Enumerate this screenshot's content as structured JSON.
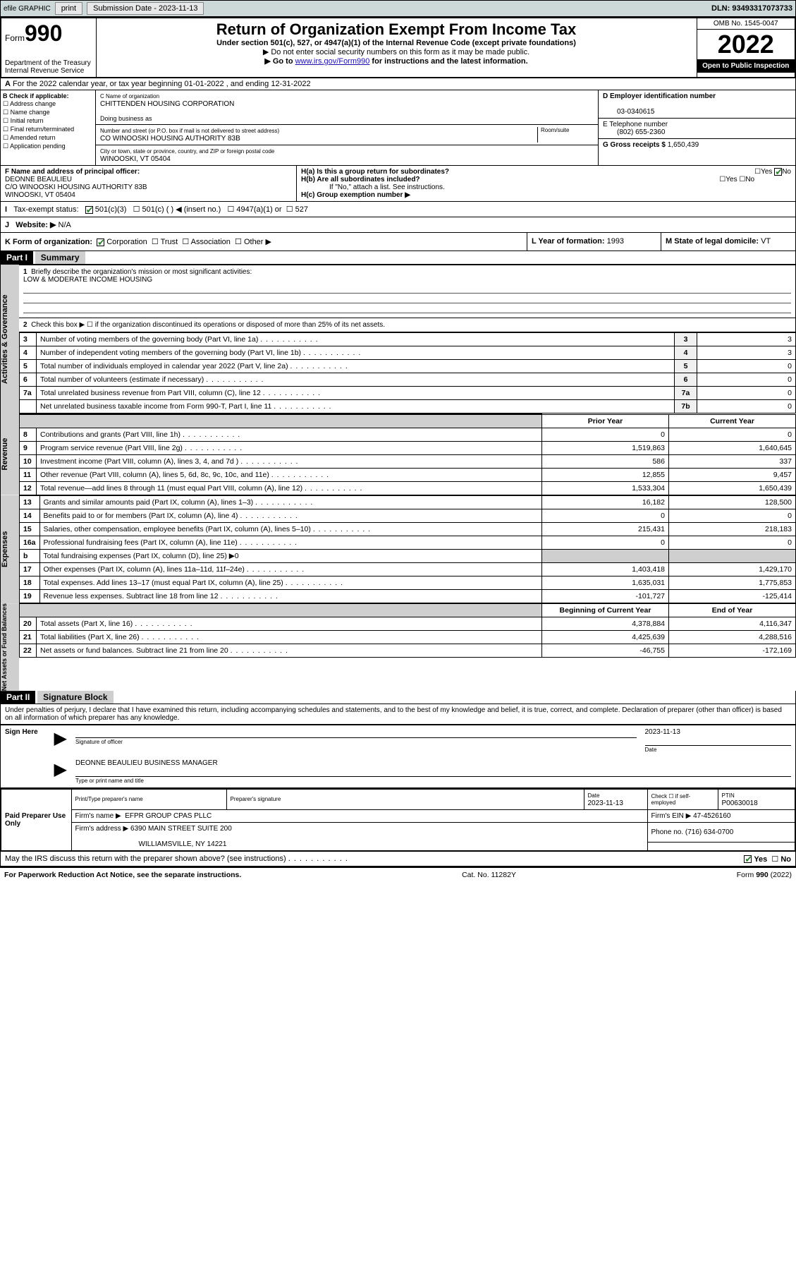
{
  "topbar": {
    "efile": "efile GRAPHIC",
    "print": "print",
    "subdate_lbl": "Submission Date - 2023-11-13",
    "dln": "DLN: 93493317073733"
  },
  "hdr": {
    "form": "Form",
    "num": "990",
    "dept": "Department of the Treasury",
    "irs": "Internal Revenue Service",
    "title": "Return of Organization Exempt From Income Tax",
    "sub1": "Under section 501(c), 527, or 4947(a)(1) of the Internal Revenue Code (except private foundations)",
    "sub2": "▶ Do not enter social security numbers on this form as it may be made public.",
    "sub3a": "▶ Go to ",
    "sub3link": "www.irs.gov/Form990",
    "sub3b": " for instructions and the latest information.",
    "omb": "OMB No. 1545-0047",
    "year": "2022",
    "open": "Open to Public Inspection"
  },
  "rowA": "For the 2022 calendar year, or tax year beginning 01-01-2022   , and ending 12-31-2022",
  "B": {
    "hdr": "B Check if applicable:",
    "addr": "Address change",
    "name": "Name change",
    "init": "Initial return",
    "fin": "Final return/terminated",
    "amend": "Amended return",
    "app": "Application pending"
  },
  "C": {
    "lbl": "C Name of organization",
    "org": "CHITTENDEN HOUSING CORPORATION",
    "dba": "Doing business as",
    "street_lbl": "Number and street (or P.O. box if mail is not delivered to street address)",
    "street": "CO WINOOSKI HOUSING AUTHORITY 83B",
    "room": "Room/suite",
    "city_lbl": "City or town, state or province, country, and ZIP or foreign postal code",
    "city": "WINOOSKI, VT  05404"
  },
  "D": {
    "lbl": "D Employer identification number",
    "val": "03-0340615"
  },
  "E": {
    "lbl": "E Telephone number",
    "val": "(802) 655-2360"
  },
  "G": {
    "lbl": "G Gross receipts $",
    "val": "1,650,439"
  },
  "F": {
    "lbl": "F  Name and address of principal officer:",
    "name": "DEONNE BEAULIEU",
    "l2": "C/O WINOOSKI HOUSING AUTHORITY 83B",
    "l3": "WINOOSKI, VT  05404"
  },
  "H": {
    "a": "H(a)  Is this a group return for subordinates?",
    "b": "H(b)  Are all subordinates included?",
    "bno": "If \"No,\" attach a list. See instructions.",
    "c": "H(c)  Group exemption number ▶",
    "yes": "Yes",
    "no": "No"
  },
  "I": {
    "lbl": "Tax-exempt status:",
    "c3": "501(c)(3)",
    "c": "501(c) (  ) ◀ (insert no.)",
    "a1": "4947(a)(1) or",
    "s527": "527"
  },
  "J": {
    "lbl": "Website: ▶",
    "val": "N/A"
  },
  "K": {
    "lbl": "K Form of organization:",
    "corp": "Corporation",
    "trust": "Trust",
    "assoc": "Association",
    "other": "Other ▶"
  },
  "L": {
    "lbl": "L Year of formation:",
    "val": "1993"
  },
  "M": {
    "lbl": "M State of legal domicile:",
    "val": "VT"
  },
  "part1": {
    "hdr": "Part I",
    "title": "Summary"
  },
  "sidelabels": {
    "act": "Activities & Governance",
    "rev": "Revenue",
    "exp": "Expenses",
    "net": "Net Assets or Fund Balances"
  },
  "s1": {
    "q1": "Briefly describe the organization's mission or most significant activities:",
    "mission": "LOW & MODERATE INCOME HOUSING",
    "q2": "Check this box ▶ ☐  if the organization discontinued its operations or disposed of more than 25% of its net assets.",
    "r": [
      {
        "n": "3",
        "t": "Number of voting members of the governing body (Part VI, line 1a)",
        "k": "3",
        "v": "3"
      },
      {
        "n": "4",
        "t": "Number of independent voting members of the governing body (Part VI, line 1b)",
        "k": "4",
        "v": "3"
      },
      {
        "n": "5",
        "t": "Total number of individuals employed in calendar year 2022 (Part V, line 2a)",
        "k": "5",
        "v": "0"
      },
      {
        "n": "6",
        "t": "Total number of volunteers (estimate if necessary)",
        "k": "6",
        "v": "0"
      },
      {
        "n": "7a",
        "t": "Total unrelated business revenue from Part VIII, column (C), line 12",
        "k": "7a",
        "v": "0"
      },
      {
        "n": "",
        "t": "Net unrelated business taxable income from Form 990-T, Part I, line 11",
        "k": "7b",
        "v": "0"
      }
    ],
    "py": "Prior Year",
    "cy": "Current Year",
    "rev": [
      {
        "n": "8",
        "t": "Contributions and grants (Part VIII, line 1h)",
        "p": "0",
        "c": "0"
      },
      {
        "n": "9",
        "t": "Program service revenue (Part VIII, line 2g)",
        "p": "1,519,863",
        "c": "1,640,645"
      },
      {
        "n": "10",
        "t": "Investment income (Part VIII, column (A), lines 3, 4, and 7d )",
        "p": "586",
        "c": "337"
      },
      {
        "n": "11",
        "t": "Other revenue (Part VIII, column (A), lines 5, 6d, 8c, 9c, 10c, and 11e)",
        "p": "12,855",
        "c": "9,457"
      },
      {
        "n": "12",
        "t": "Total revenue—add lines 8 through 11 (must equal Part VIII, column (A), line 12)",
        "p": "1,533,304",
        "c": "1,650,439"
      }
    ],
    "exp": [
      {
        "n": "13",
        "t": "Grants and similar amounts paid (Part IX, column (A), lines 1–3)",
        "p": "16,182",
        "c": "128,500"
      },
      {
        "n": "14",
        "t": "Benefits paid to or for members (Part IX, column (A), line 4)",
        "p": "0",
        "c": "0"
      },
      {
        "n": "15",
        "t": "Salaries, other compensation, employee benefits (Part IX, column (A), lines 5–10)",
        "p": "215,431",
        "c": "218,183"
      },
      {
        "n": "16a",
        "t": "Professional fundraising fees (Part IX, column (A), line 11e)",
        "p": "0",
        "c": "0"
      },
      {
        "n": "b",
        "t": "Total fundraising expenses (Part IX, column (D), line 25) ▶0",
        "p": "",
        "c": ""
      },
      {
        "n": "17",
        "t": "Other expenses (Part IX, column (A), lines 11a–11d, 11f–24e)",
        "p": "1,403,418",
        "c": "1,429,170"
      },
      {
        "n": "18",
        "t": "Total expenses. Add lines 13–17 (must equal Part IX, column (A), line 25)",
        "p": "1,635,031",
        "c": "1,775,853"
      },
      {
        "n": "19",
        "t": "Revenue less expenses. Subtract line 18 from line 12",
        "p": "-101,727",
        "c": "-125,414"
      }
    ],
    "bcy": "Beginning of Current Year",
    "eoy": "End of Year",
    "net": [
      {
        "n": "20",
        "t": "Total assets (Part X, line 16)",
        "p": "4,378,884",
        "c": "4,116,347"
      },
      {
        "n": "21",
        "t": "Total liabilities (Part X, line 26)",
        "p": "4,425,639",
        "c": "4,288,516"
      },
      {
        "n": "22",
        "t": "Net assets or fund balances. Subtract line 21 from line 20",
        "p": "-46,755",
        "c": "-172,169"
      }
    ]
  },
  "part2": {
    "hdr": "Part II",
    "title": "Signature Block"
  },
  "decl": "Under penalties of perjury, I declare that I have examined this return, including accompanying schedules and statements, and to the best of my knowledge and belief, it is true, correct, and complete. Declaration of preparer (other than officer) is based on all information of which preparer has any knowledge.",
  "sign": {
    "here": "Sign Here",
    "sigoff": "Signature of officer",
    "date": "Date",
    "dateval": "2023-11-13",
    "name": "DEONNE BEAULIEU  BUSINESS MANAGER",
    "typelbl": "Type or print name and title"
  },
  "prep": {
    "hdr": "Paid Preparer Use Only",
    "pname": "Print/Type preparer's name",
    "psig": "Preparer's signature",
    "pdate": "Date",
    "pdateval": "2023-11-13",
    "self": "Check ☐ if self-employed",
    "ptin": "PTIN",
    "ptinval": "P00630018",
    "firm": "Firm's name   ▶",
    "firmval": "EFPR GROUP CPAS PLLC",
    "ein": "Firm's EIN ▶",
    "einval": "47-4526160",
    "addr": "Firm's address ▶",
    "addrval": "6390 MAIN STREET SUITE 200",
    "addr2": "WILLIAMSVILLE, NY  14221",
    "phone": "Phone no.",
    "phoneval": "(716) 634-0700"
  },
  "discuss": {
    "q": "May the IRS discuss this return with the preparer shown above? (see instructions)",
    "yes": "Yes",
    "no": "No"
  },
  "foot": {
    "l": "For Paperwork Reduction Act Notice, see the separate instructions.",
    "m": "Cat. No. 11282Y",
    "r": "Form 990 (2022)"
  }
}
